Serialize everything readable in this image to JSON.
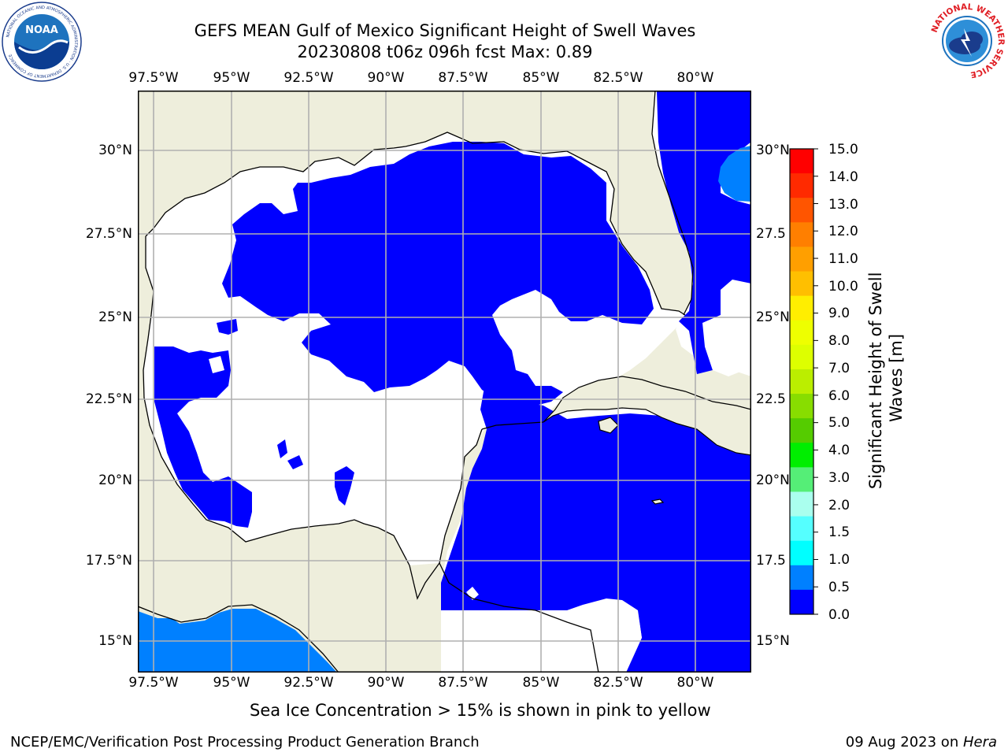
{
  "title": {
    "line1": "GEFS MEAN Gulf of Mexico Significant Height of Swell Waves",
    "line2": "20230808 t06z 096h fcst   Max: 0.89"
  },
  "map": {
    "lon_ticks": [
      "97.5°W",
      "95°W",
      "92.5°W",
      "90°W",
      "87.5°W",
      "85°W",
      "82.5°W",
      "80°W"
    ],
    "lat_ticks_left": [
      "30°N",
      "27.5°N",
      "25°N",
      "22.5°N",
      "20°N",
      "17.5°N",
      "15°N"
    ],
    "lat_ticks_right": [
      "30°N",
      "27.5",
      "25°N",
      "22.5",
      "20°N",
      "17.5",
      "15°N"
    ],
    "colors": {
      "land": "#eeeedc",
      "no_data": "#ffffff",
      "swell_0_05": "#0000ff",
      "swell_05_10": "#0080ff",
      "grid": "#b0b0b0"
    }
  },
  "colorbar": {
    "label": "Significant Height of Swell Waves [m]",
    "levels": [
      "15.0",
      "14.0",
      "13.0",
      "12.0",
      "11.0",
      "10.0",
      "9.0",
      "8.0",
      "7.0",
      "6.0",
      "5.0",
      "4.0",
      "3.0",
      "2.0",
      "1.5",
      "1.0",
      "0.5",
      "0.0"
    ],
    "colors_top_to_bottom": [
      "#ff0000",
      "#ff2a00",
      "#ff5500",
      "#ff7f00",
      "#ff9f00",
      "#ffbf00",
      "#ffee00",
      "#eeff00",
      "#ddff00",
      "#bbee00",
      "#88dd00",
      "#55cc00",
      "#00ee00",
      "#55ee77",
      "#aaffee",
      "#55ffff",
      "#00ffff",
      "#0080ff",
      "#0000ff"
    ]
  },
  "caption": "Sea Ice Concentration > 15% is shown in pink to yellow",
  "footer": {
    "left": "NCEP/EMC/Verification Post Processing Product Generation Branch",
    "date": "09 Aug 2023 on ",
    "host": "Hera"
  },
  "logos": {
    "noaa": {
      "text": "NOAA",
      "ring": "NATIONAL OCEANIC AND ATMOSPHERIC ADMINISTRATION · U.S. DEPARTMENT OF COMMERCE",
      "icon": "noaa-logo"
    },
    "nws": {
      "ring": "NATIONAL WEATHER SERVICE",
      "icon": "nws-logo"
    }
  }
}
